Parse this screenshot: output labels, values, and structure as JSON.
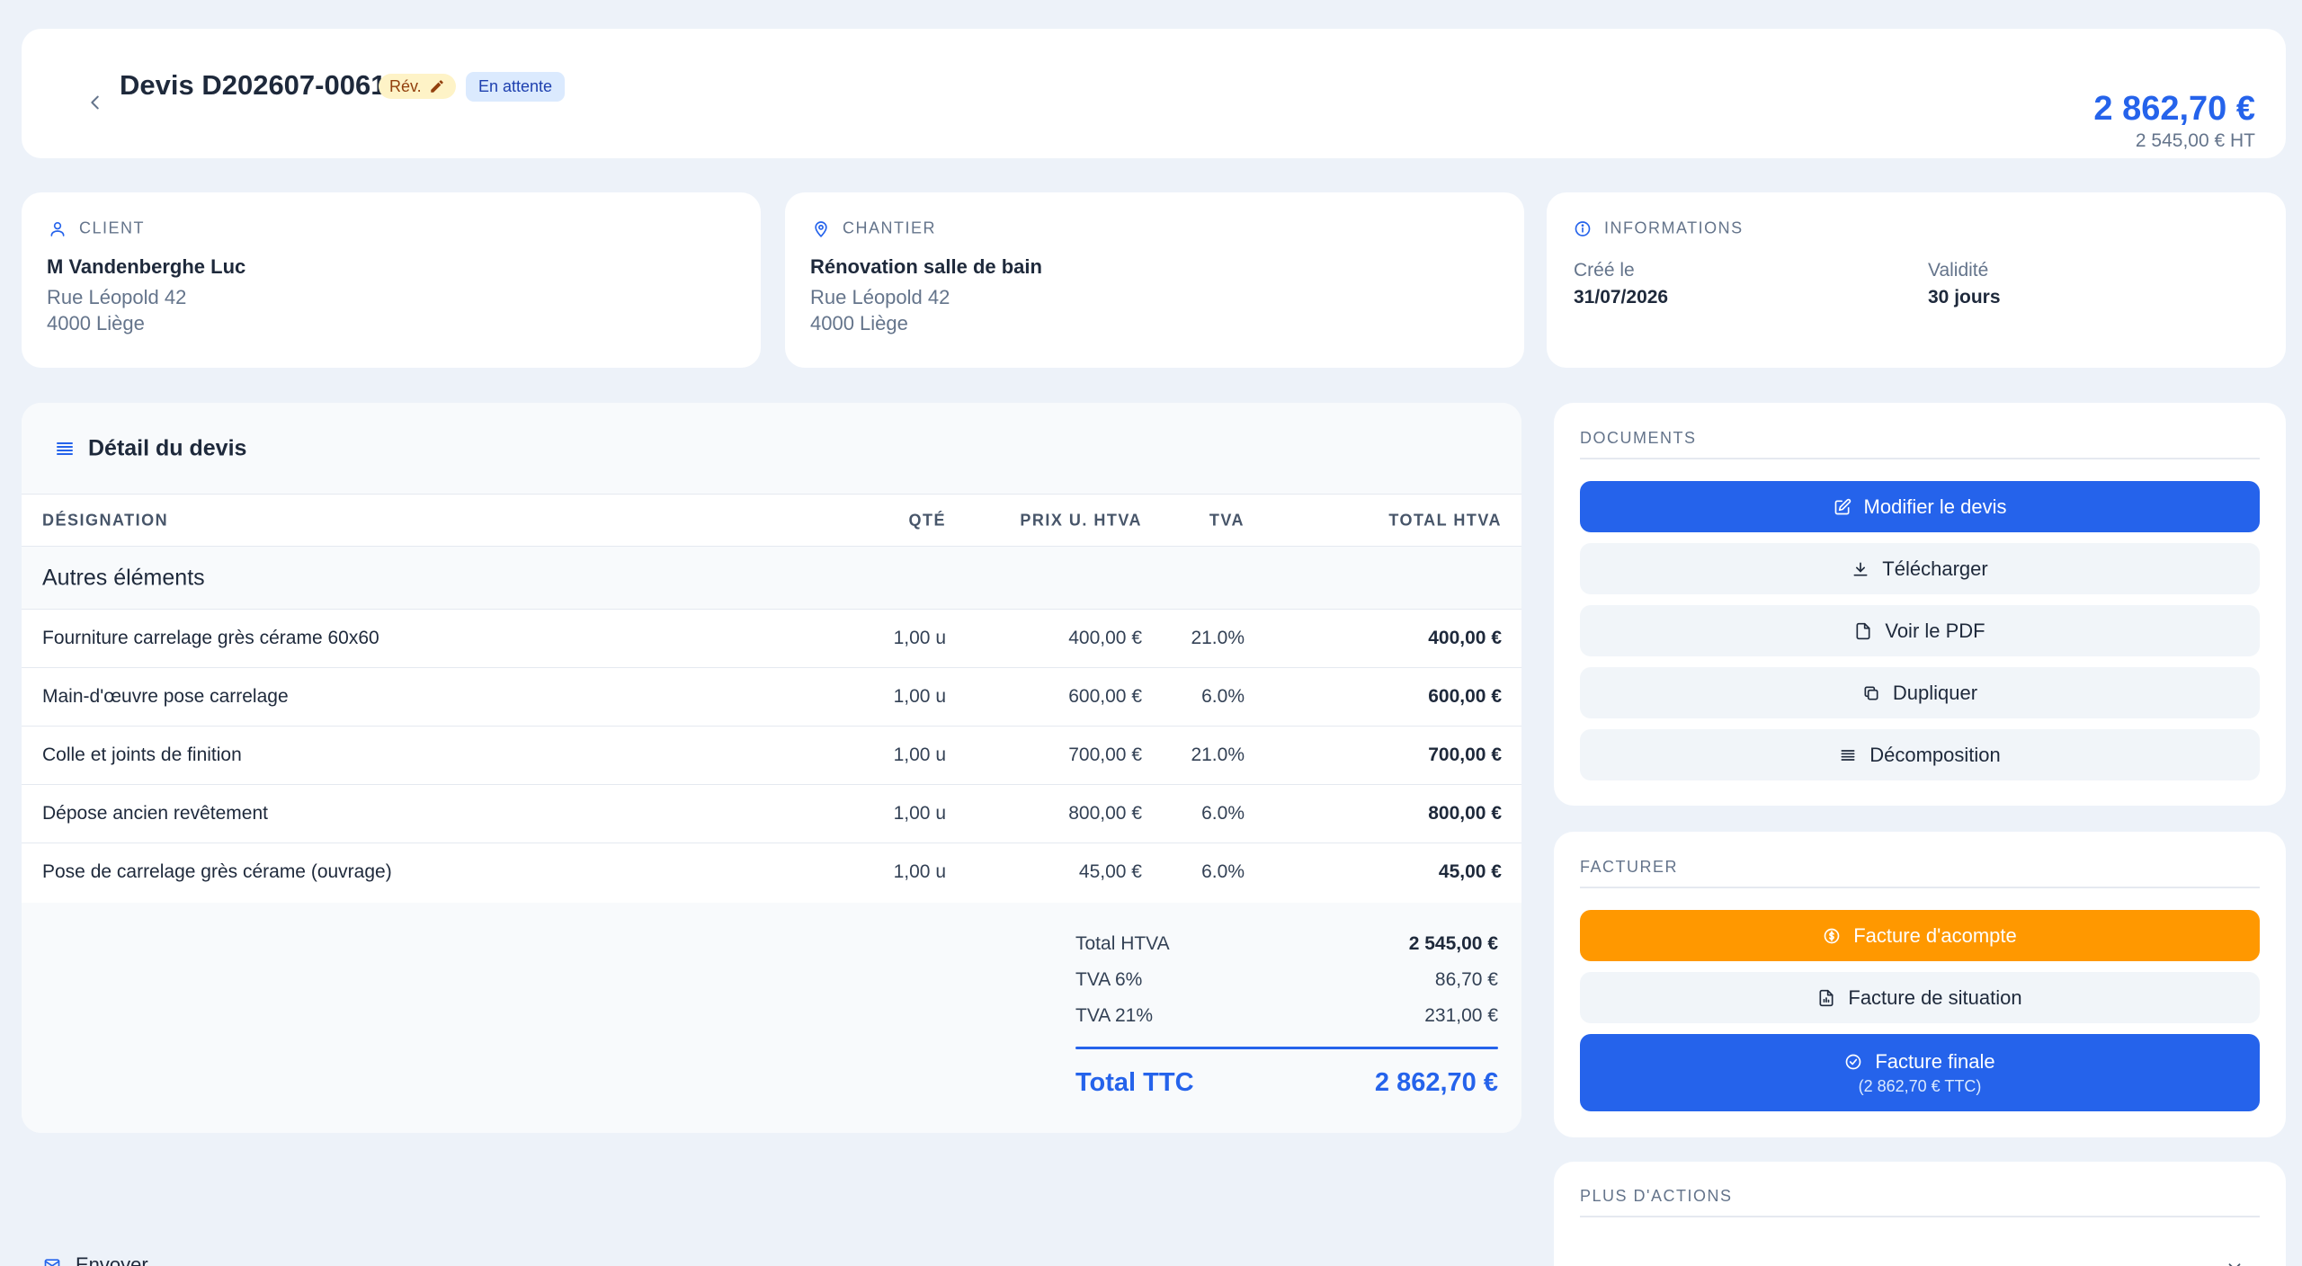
{
  "header": {
    "title": "Devis D202607-0061",
    "rev_label": "Rév.",
    "status": "En attente",
    "total_ttc": "2 862,70 €",
    "total_ht": "2 545,00 € HT"
  },
  "client": {
    "heading": "CLIENT",
    "name": "M Vandenberghe Luc",
    "address1": "Rue Léopold 42",
    "address2": "4000 Liège"
  },
  "chantier": {
    "heading": "CHANTIER",
    "name": "Rénovation salle de bain",
    "address1": "Rue Léopold 42",
    "address2": "4000 Liège"
  },
  "informations": {
    "heading": "INFORMATIONS",
    "created_label": "Créé le",
    "created_value": "31/07/2026",
    "validity_label": "Validité",
    "validity_value": "30 jours"
  },
  "detail": {
    "title": "Détail du devis",
    "columns": {
      "designation": "DÉSIGNATION",
      "qty": "QTÉ",
      "unit_price": "PRIX U. HTVA",
      "tva": "TVA",
      "total": "TOTAL HTVA"
    },
    "section": "Autres éléments",
    "lines": [
      {
        "designation": "Fourniture carrelage grès cérame 60x60",
        "qty": "1,00 u",
        "unit_price": "400,00 €",
        "tva": "21.0%",
        "total": "400,00 €"
      },
      {
        "designation": "Main-d'œuvre pose carrelage",
        "qty": "1,00 u",
        "unit_price": "600,00 €",
        "tva": "6.0%",
        "total": "600,00 €"
      },
      {
        "designation": "Colle et joints de finition",
        "qty": "1,00 u",
        "unit_price": "700,00 €",
        "tva": "21.0%",
        "total": "700,00 €"
      },
      {
        "designation": "Dépose ancien revêtement",
        "qty": "1,00 u",
        "unit_price": "800,00 €",
        "tva": "6.0%",
        "total": "800,00 €"
      },
      {
        "designation": "Pose de carrelage grès cérame (ouvrage)",
        "qty": "1,00 u",
        "unit_price": "45,00 €",
        "tva": "6.0%",
        "total": "45,00 €"
      }
    ],
    "totals": {
      "htva_label": "Total HTVA",
      "htva_value": "2 545,00 €",
      "tva6_label": "TVA 6%",
      "tva6_value": "86,70 €",
      "tva21_label": "TVA 21%",
      "tva21_value": "231,00 €",
      "ttc_label": "Total TTC",
      "ttc_value": "2 862,70 €"
    }
  },
  "documents": {
    "heading": "DOCUMENTS",
    "edit": "Modifier le devis",
    "download": "Télécharger",
    "view_pdf": "Voir le PDF",
    "duplicate": "Dupliquer",
    "breakdown": "Décomposition"
  },
  "facturer": {
    "heading": "FACTURER",
    "deposit": "Facture d'acompte",
    "situation": "Facture de situation",
    "final": "Facture finale",
    "final_sub": "(2 862,70 € TTC)"
  },
  "more": {
    "heading": "PLUS D'ACTIONS",
    "send": "Envoyer"
  },
  "colors": {
    "accent": "#2563eb",
    "orange": "#ff9800",
    "background": "#edf2f9"
  }
}
